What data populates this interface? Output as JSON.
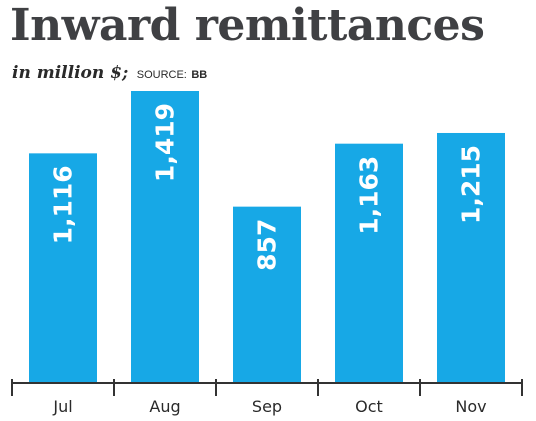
{
  "chart_data": {
    "type": "bar",
    "title": "Inward remittances",
    "subtitle": "in million $;",
    "source_label": "SOURCE:",
    "source": "BB",
    "categories": [
      "Jul",
      "Aug",
      "Sep",
      "Oct",
      "Nov"
    ],
    "values": [
      1116,
      1419,
      857,
      1163,
      1215
    ],
    "value_labels": [
      "1,116",
      "1,419",
      "857",
      "1,163",
      "1,215"
    ],
    "xlabel": "",
    "ylabel": "",
    "ylim": [
      0,
      1419
    ],
    "grid": false,
    "bar_color": "#17a8e6",
    "label_color": "#ffffff",
    "axis_color": "#333333"
  }
}
